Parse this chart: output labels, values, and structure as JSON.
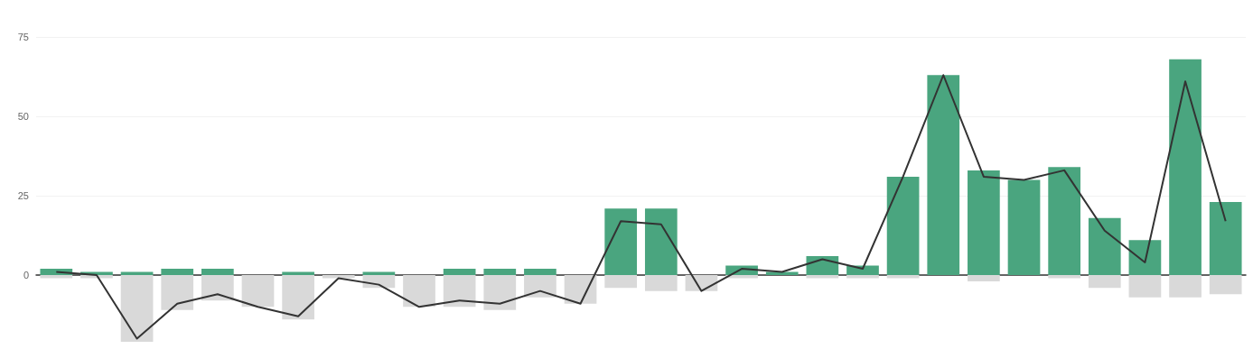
{
  "chart_data": {
    "type": "bar",
    "stacked": true,
    "categories": [
      null,
      null,
      null,
      null,
      null,
      null,
      null,
      null,
      null,
      null,
      null,
      null,
      null,
      null,
      null,
      null,
      null,
      null,
      null,
      null,
      null,
      null,
      null,
      null,
      null,
      null,
      null,
      null,
      null,
      null
    ],
    "series": [
      {
        "color": "#4aa57f",
        "values": [
          2,
          1,
          1,
          2,
          2,
          0,
          1,
          0,
          1,
          0,
          2,
          2,
          2,
          0,
          21,
          21,
          0,
          3,
          1,
          6,
          3,
          31,
          63,
          33,
          30,
          34,
          18,
          11,
          68,
          23
        ]
      },
      {
        "color": "#d9d9d9",
        "values": [
          -1,
          -1,
          -21,
          -11,
          -8,
          -10,
          -14,
          -1,
          -4,
          -10,
          -10,
          -11,
          -7,
          -9,
          -4,
          -5,
          -5,
          -1,
          0,
          -1,
          -1,
          -1,
          0,
          -2,
          0,
          -1,
          -4,
          -7,
          -7,
          -6
        ]
      },
      {
        "type": "line",
        "color": "#333333",
        "values": [
          1,
          0,
          -20,
          -9,
          -6,
          -10,
          -13,
          -1,
          -3,
          -10,
          -8,
          -9,
          -5,
          -9,
          17,
          16,
          -5,
          2,
          1,
          5,
          2,
          31,
          63,
          31,
          30,
          33,
          14,
          4,
          61,
          17
        ]
      }
    ],
    "ylim": [
      -21,
      75
    ],
    "yticks": [
      0,
      25,
      50,
      75
    ],
    "grid": "y",
    "marker": "none",
    "line_style": "solid",
    "tick_labels": "y"
  }
}
